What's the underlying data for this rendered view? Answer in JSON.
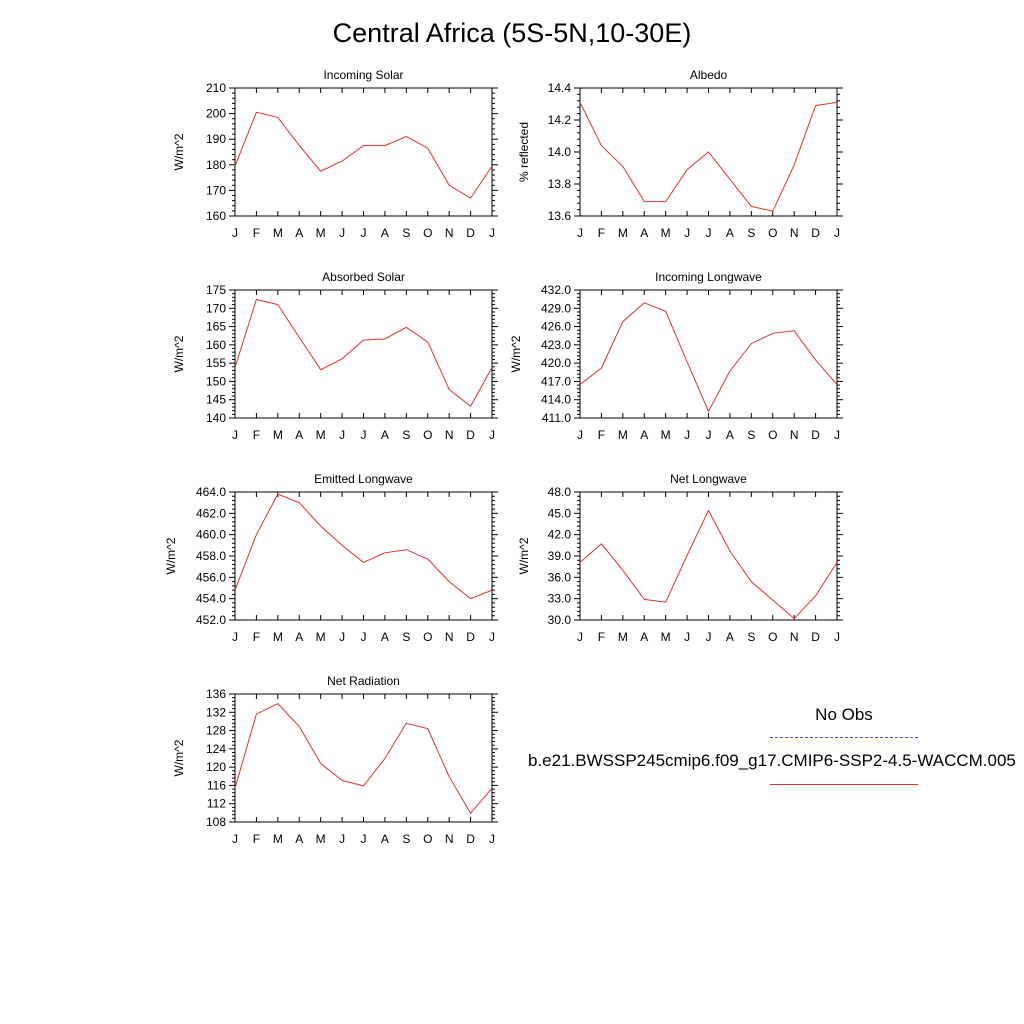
{
  "title": "Central Africa (5S-5N,10-30E)",
  "legend": {
    "obs_label": "No Obs",
    "obs_color": "#4a4aff",
    "model_label": "b.e21.BWSSP245cmip6.f09_g17.CMIP6-SSP2-4.5-WACCM.005",
    "model_color": "#e03030"
  },
  "chart_data": [
    {
      "type": "line",
      "title": "Incoming Solar",
      "ylabel": "W/m^2",
      "x": [
        "J",
        "F",
        "M",
        "A",
        "M",
        "J",
        "J",
        "A",
        "S",
        "O",
        "N",
        "D",
        "J"
      ],
      "ylim": [
        160,
        210
      ],
      "yticks": [
        "160",
        "170",
        "180",
        "190",
        "200",
        "210"
      ],
      "series": [
        {
          "values": [
            179.5,
            200.5,
            198.5,
            187.5,
            177.5,
            181.5,
            187.5,
            187.5,
            191.0,
            186.5,
            172.0,
            167.0,
            179.5
          ]
        }
      ]
    },
    {
      "type": "line",
      "title": "Albedo",
      "ylabel": "% reflected",
      "x": [
        "J",
        "F",
        "M",
        "A",
        "M",
        "J",
        "J",
        "A",
        "S",
        "O",
        "N",
        "D",
        "J"
      ],
      "ylim": [
        13.6,
        14.4
      ],
      "yticks": [
        "13.6",
        "13.8",
        "14.0",
        "14.2",
        "14.4"
      ],
      "series": [
        {
          "values": [
            14.31,
            14.04,
            13.91,
            13.69,
            13.69,
            13.89,
            14.0,
            13.83,
            13.66,
            13.63,
            13.92,
            14.29,
            14.31
          ]
        }
      ]
    },
    {
      "type": "line",
      "title": "Absorbed Solar",
      "ylabel": "W/m^2",
      "x": [
        "J",
        "F",
        "M",
        "A",
        "M",
        "J",
        "J",
        "A",
        "S",
        "O",
        "N",
        "D",
        "J"
      ],
      "ylim": [
        140,
        175
      ],
      "yticks": [
        "140",
        "145",
        "150",
        "155",
        "160",
        "165",
        "170",
        "175"
      ],
      "series": [
        {
          "values": [
            153.8,
            172.4,
            171.0,
            162.0,
            153.2,
            156.2,
            161.3,
            161.6,
            164.8,
            160.8,
            147.8,
            143.2,
            153.8
          ]
        }
      ]
    },
    {
      "type": "line",
      "title": "Incoming Longwave",
      "ylabel": "W/m^2",
      "x": [
        "J",
        "F",
        "M",
        "A",
        "M",
        "J",
        "J",
        "A",
        "S",
        "O",
        "N",
        "D",
        "J"
      ],
      "ylim": [
        411.0,
        432.0
      ],
      "yticks": [
        "411.0",
        "414.0",
        "417.0",
        "420.0",
        "423.0",
        "426.0",
        "429.0",
        "432.0"
      ],
      "series": [
        {
          "values": [
            416.5,
            419.2,
            426.8,
            429.9,
            428.5,
            420.2,
            412.1,
            418.7,
            423.2,
            424.9,
            425.3,
            420.5,
            416.5
          ]
        }
      ]
    },
    {
      "type": "line",
      "title": "Emitted Longwave",
      "ylabel": "W/m^2",
      "x": [
        "J",
        "F",
        "M",
        "A",
        "M",
        "J",
        "J",
        "A",
        "S",
        "O",
        "N",
        "D",
        "J"
      ],
      "ylim": [
        452.0,
        464.0
      ],
      "yticks": [
        "452.0",
        "454.0",
        "456.0",
        "458.0",
        "460.0",
        "462.0",
        "464.0"
      ],
      "series": [
        {
          "values": [
            454.8,
            460.0,
            463.8,
            463.0,
            460.8,
            459.0,
            457.4,
            458.3,
            458.6,
            457.7,
            455.6,
            454.0,
            454.8
          ]
        }
      ]
    },
    {
      "type": "line",
      "title": "Net Longwave",
      "ylabel": "W/m^2",
      "x": [
        "J",
        "F",
        "M",
        "A",
        "M",
        "J",
        "J",
        "A",
        "S",
        "O",
        "N",
        "D",
        "J"
      ],
      "ylim": [
        30.0,
        48.0
      ],
      "yticks": [
        "30.0",
        "33.0",
        "36.0",
        "39.0",
        "42.0",
        "45.0",
        "48.0"
      ],
      "series": [
        {
          "values": [
            38.1,
            40.7,
            37.0,
            32.9,
            32.5,
            39.1,
            45.4,
            39.7,
            35.4,
            32.8,
            30.2,
            33.4,
            38.1
          ]
        }
      ]
    },
    {
      "type": "line",
      "title": "Net Radiation",
      "ylabel": "W/m^2",
      "x": [
        "J",
        "F",
        "M",
        "A",
        "M",
        "J",
        "J",
        "A",
        "S",
        "O",
        "N",
        "D",
        "J"
      ],
      "ylim": [
        108,
        136
      ],
      "yticks": [
        "108",
        "112",
        "116",
        "120",
        "124",
        "128",
        "132",
        "136"
      ],
      "series": [
        {
          "values": [
            115.4,
            131.6,
            133.9,
            128.9,
            120.8,
            117.1,
            115.9,
            121.9,
            129.6,
            128.4,
            117.9,
            109.9,
            115.4
          ]
        }
      ]
    }
  ]
}
